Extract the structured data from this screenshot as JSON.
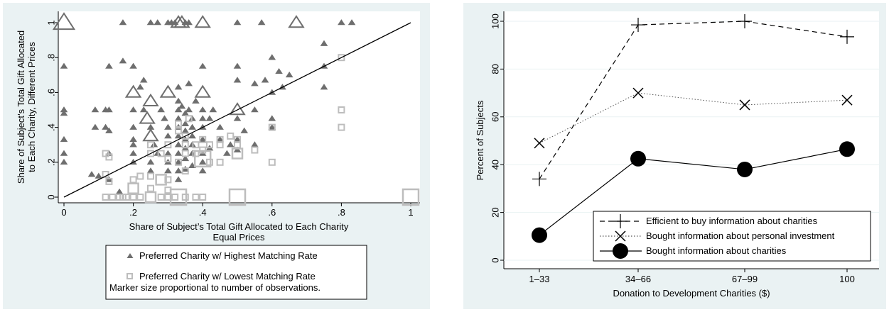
{
  "chart_data": [
    {
      "type": "scatter",
      "xlabel_lines": [
        "Share of Subject’s Total Gift Allocated to Each Charity",
        "Equal Prices"
      ],
      "ylabel_lines": [
        "Share of Subject’s Total Gift Allocated",
        "to Each Charity, Different Prices"
      ],
      "xlim": [
        0,
        1
      ],
      "ylim": [
        0,
        1
      ],
      "xticks": [
        {
          "v": 0,
          "label": "0"
        },
        {
          "v": 0.2,
          "label": ".2"
        },
        {
          "v": 0.4,
          "label": ".4"
        },
        {
          "v": 0.6,
          "label": ".6"
        },
        {
          "v": 0.8,
          "label": ".8"
        },
        {
          "v": 1,
          "label": "1"
        }
      ],
      "yticks": [
        {
          "v": 0,
          "label": "0"
        },
        {
          "v": 0.2,
          "label": ".2"
        },
        {
          "v": 0.4,
          "label": ".4"
        },
        {
          "v": 0.6,
          "label": ".6"
        },
        {
          "v": 0.8,
          "label": ".8"
        },
        {
          "v": 1,
          "label": "1"
        }
      ],
      "reference_line": {
        "x": [
          0,
          1
        ],
        "y": [
          0,
          1
        ]
      },
      "legend_placement": "bottom",
      "legend": {
        "entries": [
          "Preferred Charity w/ Highest Matching Rate",
          "Preferred Charity w/ Lowest Matching Rate"
        ],
        "note": "Marker size proportional to number of observations."
      },
      "colors": {
        "highest": "#6e6e6e",
        "lowest": "#bdbdbd",
        "line": "#000000"
      },
      "series": [
        {
          "marker": "triangle",
          "color": "#6e6e6e",
          "points": [
            [
              0,
              1,
              3
            ],
            [
              0,
              0.75,
              1
            ],
            [
              0,
              0.5,
              1
            ],
            [
              0,
              0.48,
              1
            ],
            [
              0,
              0.33,
              1
            ],
            [
              0,
              0.25,
              1
            ],
            [
              0,
              0.2,
              1
            ],
            [
              0.17,
              1,
              1
            ],
            [
              0.25,
              1,
              1
            ],
            [
              0.27,
              1,
              1
            ],
            [
              0.3,
              1,
              1
            ],
            [
              0.31,
              1,
              1
            ],
            [
              0.32,
              1,
              1
            ],
            [
              0.33,
              1,
              2
            ],
            [
              0.34,
              1,
              2
            ],
            [
              0.35,
              1,
              1
            ],
            [
              0.36,
              1,
              1
            ],
            [
              0.4,
              1,
              2
            ],
            [
              0.5,
              1,
              1
            ],
            [
              0.57,
              1,
              1
            ],
            [
              0.67,
              1,
              2
            ],
            [
              0.8,
              1,
              1
            ],
            [
              0.83,
              1,
              1
            ],
            [
              0.75,
              0.88,
              1
            ],
            [
              0.75,
              0.75,
              1
            ],
            [
              0.75,
              0.63,
              1
            ],
            [
              0.6,
              0.8,
              1
            ],
            [
              0.62,
              0.72,
              1
            ],
            [
              0.65,
              0.7,
              1
            ],
            [
              0.58,
              0.67,
              1
            ],
            [
              0.55,
              0.65,
              1
            ],
            [
              0.6,
              0.6,
              1
            ],
            [
              0.63,
              0.63,
              1
            ],
            [
              0.17,
              0.78,
              1
            ],
            [
              0.13,
              0.75,
              1
            ],
            [
              0.2,
              0.75,
              1
            ],
            [
              0.22,
              0.63,
              1
            ],
            [
              0.23,
              0.67,
              1
            ],
            [
              0.2,
              0.6,
              2
            ],
            [
              0.25,
              0.55,
              2
            ],
            [
              0.3,
              0.6,
              2
            ],
            [
              0.33,
              0.63,
              1
            ],
            [
              0.36,
              0.65,
              1
            ],
            [
              0.4,
              0.6,
              2
            ],
            [
              0.4,
              0.75,
              1
            ],
            [
              0.5,
              0.75,
              1
            ],
            [
              0.5,
              0.67,
              1
            ],
            [
              0.55,
              0.5,
              1
            ],
            [
              0.5,
              0.5,
              2
            ],
            [
              0.09,
              0.5,
              1
            ],
            [
              0.12,
              0.5,
              1
            ],
            [
              0.13,
              0.5,
              1
            ],
            [
              0.09,
              0.4,
              1
            ],
            [
              0.12,
              0.4,
              1
            ],
            [
              0.13,
              0.38,
              1
            ],
            [
              0.2,
              0.5,
              1
            ],
            [
              0.2,
              0.4,
              1
            ],
            [
              0.2,
              0.33,
              1
            ],
            [
              0.2,
              0.3,
              1
            ],
            [
              0.2,
              0.25,
              1
            ],
            [
              0.2,
              0.2,
              1
            ],
            [
              0.23,
              0.5,
              1
            ],
            [
              0.24,
              0.45,
              2
            ],
            [
              0.25,
              0.4,
              1
            ],
            [
              0.25,
              0.35,
              2
            ],
            [
              0.26,
              0.3,
              1
            ],
            [
              0.27,
              0.25,
              1
            ],
            [
              0.25,
              0.2,
              1
            ],
            [
              0.28,
              0.5,
              1
            ],
            [
              0.29,
              0.45,
              1
            ],
            [
              0.3,
              0.4,
              1
            ],
            [
              0.3,
              0.35,
              1
            ],
            [
              0.3,
              0.25,
              1
            ],
            [
              0.3,
              0.2,
              1
            ],
            [
              0.33,
              0.55,
              1
            ],
            [
              0.33,
              0.5,
              1
            ],
            [
              0.33,
              0.45,
              1
            ],
            [
              0.33,
              0.4,
              1
            ],
            [
              0.33,
              0.35,
              1
            ],
            [
              0.33,
              0.3,
              1
            ],
            [
              0.33,
              0.25,
              1
            ],
            [
              0.33,
              0.2,
              1
            ],
            [
              0.33,
              0.15,
              1
            ],
            [
              0.34,
              0.52,
              1
            ],
            [
              0.35,
              0.48,
              1
            ],
            [
              0.35,
              0.42,
              1
            ],
            [
              0.35,
              0.38,
              1
            ],
            [
              0.35,
              0.33,
              1
            ],
            [
              0.35,
              0.28,
              1
            ],
            [
              0.35,
              0.22,
              1
            ],
            [
              0.35,
              0.16,
              1
            ],
            [
              0.36,
              0.5,
              1
            ],
            [
              0.37,
              0.45,
              1
            ],
            [
              0.37,
              0.4,
              1
            ],
            [
              0.37,
              0.35,
              1
            ],
            [
              0.37,
              0.3,
              1
            ],
            [
              0.37,
              0.25,
              1
            ],
            [
              0.37,
              0.18,
              1
            ],
            [
              0.38,
              0.55,
              1
            ],
            [
              0.4,
              0.5,
              1
            ],
            [
              0.4,
              0.45,
              1
            ],
            [
              0.4,
              0.4,
              1
            ],
            [
              0.4,
              0.33,
              1
            ],
            [
              0.4,
              0.25,
              1
            ],
            [
              0.4,
              0.2,
              1
            ],
            [
              0.43,
              0.5,
              1
            ],
            [
              0.42,
              0.45,
              1
            ],
            [
              0.45,
              0.4,
              1
            ],
            [
              0.45,
              0.33,
              1
            ],
            [
              0.42,
              0.28,
              1
            ],
            [
              0.48,
              0.3,
              1
            ],
            [
              0.47,
              0.25,
              1
            ],
            [
              0.5,
              0.45,
              1
            ],
            [
              0.52,
              0.38,
              1
            ],
            [
              0.5,
              0.33,
              1
            ],
            [
              0.5,
              0.27,
              1
            ],
            [
              0.55,
              0.3,
              1
            ],
            [
              0.6,
              0.45,
              1
            ],
            [
              0.6,
              0.4,
              1
            ],
            [
              0.13,
              0.25,
              1
            ],
            [
              0.13,
              0.1,
              1
            ],
            [
              0.1,
              0.12,
              1
            ],
            [
              0.08,
              0.13,
              1
            ],
            [
              0.16,
              0.03,
              1
            ],
            [
              0.3,
              0.15,
              1
            ],
            [
              0.33,
              0.1,
              1
            ],
            [
              0.4,
              0.15,
              1
            ],
            [
              0.25,
              0.15,
              1
            ]
          ]
        },
        {
          "marker": "square",
          "color": "#bdbdbd",
          "points": [
            [
              1,
              0,
              3
            ],
            [
              0.5,
              0,
              3
            ],
            [
              0.33,
              0,
              3
            ],
            [
              0.32,
              0,
              1
            ],
            [
              0.35,
              0,
              1
            ],
            [
              0.38,
              0,
              1
            ],
            [
              0.4,
              0,
              1
            ],
            [
              0.3,
              0,
              1
            ],
            [
              0.28,
              0,
              1
            ],
            [
              0.25,
              0,
              2
            ],
            [
              0.22,
              0,
              1
            ],
            [
              0.2,
              0,
              1
            ],
            [
              0.18,
              0,
              1
            ],
            [
              0.16,
              0,
              1
            ],
            [
              0.14,
              0,
              1
            ],
            [
              0.12,
              0,
              1
            ],
            [
              0.17,
              0,
              1
            ],
            [
              0.8,
              0.8,
              1
            ],
            [
              0.8,
              0.5,
              1
            ],
            [
              0.8,
              0.4,
              1
            ],
            [
              0.6,
              0.4,
              1
            ],
            [
              0.6,
              0.2,
              1
            ],
            [
              0.5,
              0.33,
              1
            ],
            [
              0.5,
              0.3,
              1
            ],
            [
              0.5,
              0.25,
              2
            ],
            [
              0.55,
              0.27,
              1
            ],
            [
              0.4,
              0.33,
              1
            ],
            [
              0.42,
              0.3,
              1
            ],
            [
              0.4,
              0.27,
              1
            ],
            [
              0.45,
              0.33,
              1
            ],
            [
              0.45,
              0.3,
              1
            ],
            [
              0.4,
              0.22,
              3
            ],
            [
              0.42,
              0.2,
              1
            ],
            [
              0.45,
              0.2,
              1
            ],
            [
              0.48,
              0.35,
              1
            ],
            [
              0.33,
              0.42,
              1
            ],
            [
              0.33,
              0.38,
              1
            ],
            [
              0.35,
              0.35,
              1
            ],
            [
              0.36,
              0.45,
              1
            ],
            [
              0.35,
              0.3,
              1
            ],
            [
              0.35,
              0.25,
              1
            ],
            [
              0.33,
              0.2,
              1
            ],
            [
              0.35,
              0.15,
              1
            ],
            [
              0.3,
              0.1,
              1
            ],
            [
              0.22,
              0.12,
              1
            ],
            [
              0.25,
              0.12,
              1
            ],
            [
              0.12,
              0.13,
              1
            ],
            [
              0.13,
              0.09,
              1
            ],
            [
              0.13,
              0.23,
              1
            ],
            [
              0.12,
              0.25,
              1
            ],
            [
              0.25,
              0.25,
              1
            ],
            [
              0.28,
              0.25,
              1
            ],
            [
              0.25,
              0.3,
              1
            ],
            [
              0.2,
              0.05,
              2
            ],
            [
              0.25,
              0.05,
              1
            ],
            [
              0.3,
              0.04,
              1
            ],
            [
              0.28,
              0.1,
              2
            ],
            [
              0.3,
              0.3,
              1
            ],
            [
              0.38,
              0.3,
              1
            ],
            [
              0.38,
              0.25,
              1
            ],
            [
              0.3,
              0.22,
              1
            ],
            [
              0.2,
              0.1,
              1
            ]
          ]
        }
      ]
    },
    {
      "type": "line",
      "categories": [
        "1–33",
        "34–66",
        "67–99",
        "100"
      ],
      "xlabel": "Donation to Development Charities ($)",
      "ylabel": "Percent of Subjects",
      "ylim": [
        0,
        100
      ],
      "yticks": [
        0,
        20,
        40,
        60,
        80,
        100
      ],
      "legend_placement": "bottom-right",
      "series": [
        {
          "name": "Efficient to buy information about charities",
          "values": [
            34,
            98.5,
            100,
            93.5
          ],
          "style": "dashed",
          "marker": "plus",
          "color": "#000000"
        },
        {
          "name": "Bought information about personal investment",
          "values": [
            49,
            70,
            65,
            67
          ],
          "style": "dotted",
          "marker": "x",
          "color": "#000000"
        },
        {
          "name": "Bought information about charities",
          "values": [
            10.5,
            42.5,
            38,
            46.5
          ],
          "style": "solid",
          "marker": "circle",
          "color": "#000000"
        }
      ]
    }
  ]
}
